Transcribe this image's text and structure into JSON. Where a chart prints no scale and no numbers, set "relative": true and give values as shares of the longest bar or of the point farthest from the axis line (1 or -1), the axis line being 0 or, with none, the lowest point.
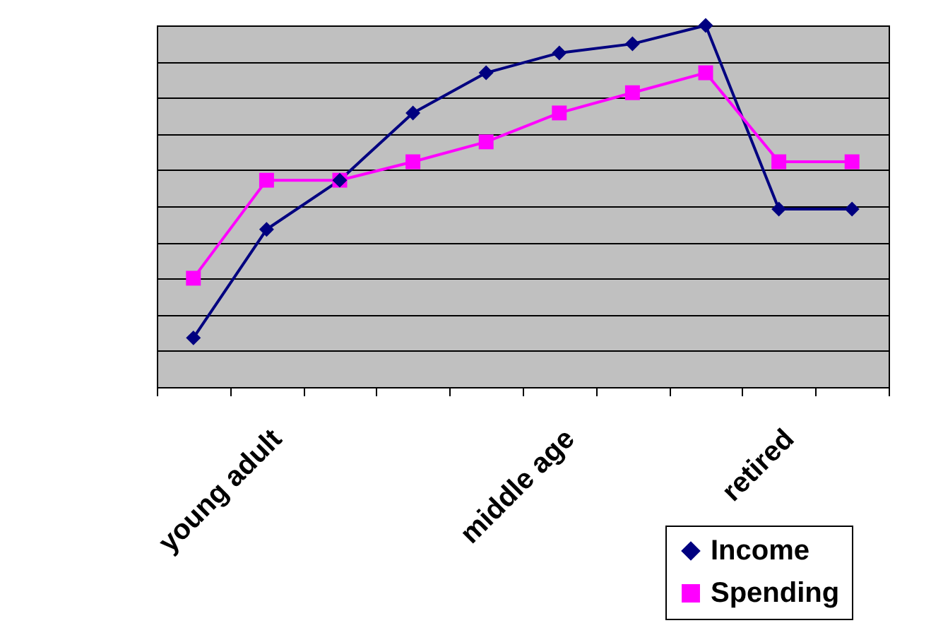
{
  "chart_data": {
    "type": "line",
    "relative": true,
    "categories": [
      null,
      "young adult",
      null,
      null,
      null,
      "middle age",
      null,
      null,
      "retired",
      null
    ],
    "series": [
      {
        "name": "Income",
        "color": "#000080",
        "marker": "diamond",
        "values": [
          0.136,
          0.436,
          0.572,
          0.758,
          0.869,
          0.924,
          0.949,
          1,
          0.492,
          0.492
        ]
      },
      {
        "name": "Spending",
        "color": "#ff00ff",
        "marker": "square",
        "values": [
          0.301,
          0.572,
          0.572,
          0.623,
          0.678,
          0.758,
          0.814,
          0.869,
          0.623,
          0.623
        ]
      }
    ],
    "grid": "y",
    "legend": "bottom right"
  }
}
